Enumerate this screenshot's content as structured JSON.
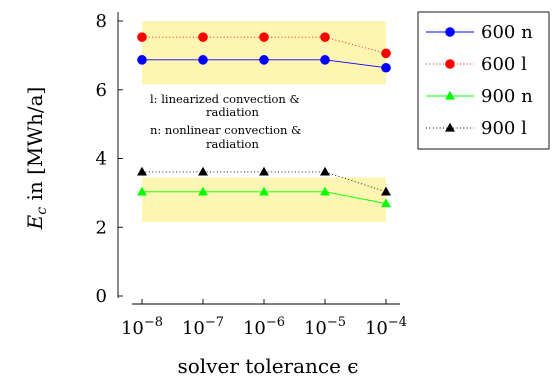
{
  "chart_data": {
    "type": "line",
    "x": [
      "-8",
      "-7",
      "-6",
      "-5",
      "-4"
    ],
    "x_tick_base": "10",
    "x_tick_exponents": [
      "−8",
      "−7",
      "−6",
      "−5",
      "−4"
    ],
    "xlabel": "solver tolerance ϵ",
    "ylabel_symbol": "E",
    "ylabel_subscript": "c",
    "ylabel_rest": " in [MWh/a]",
    "ylim": [
      0,
      8
    ],
    "y_ticks": [
      "0",
      "2",
      "4",
      "6",
      "8"
    ],
    "series": [
      {
        "name": "600 n",
        "values": [
          6.87,
          6.87,
          6.87,
          6.87,
          6.64
        ],
        "color": "#0000ff",
        "line": "solid",
        "marker": "circle"
      },
      {
        "name": "600 l",
        "values": [
          7.53,
          7.53,
          7.53,
          7.53,
          7.06
        ],
        "color": "#ff0000",
        "line": "dotted",
        "marker": "circle"
      },
      {
        "name": "900 n",
        "values": [
          3.03,
          3.03,
          3.03,
          3.03,
          2.69
        ],
        "color": "#00ff00",
        "line": "solid",
        "marker": "triangle"
      },
      {
        "name": "900 l",
        "values": [
          3.61,
          3.61,
          3.61,
          3.61,
          3.03
        ],
        "color": "#000000",
        "line": "dotted",
        "marker": "triangle"
      }
    ],
    "bands": [
      {
        "y": [
          6.15,
          8.0
        ],
        "color": "#fff5b3"
      },
      {
        "y": [
          2.15,
          3.45
        ],
        "color": "#fff5b3"
      }
    ],
    "annotations": [
      "l:  linearized convection &",
      "radiation",
      "n:  nonlinear convection &",
      "radiation"
    ],
    "legend_position": "outside-right",
    "grid": false
  }
}
